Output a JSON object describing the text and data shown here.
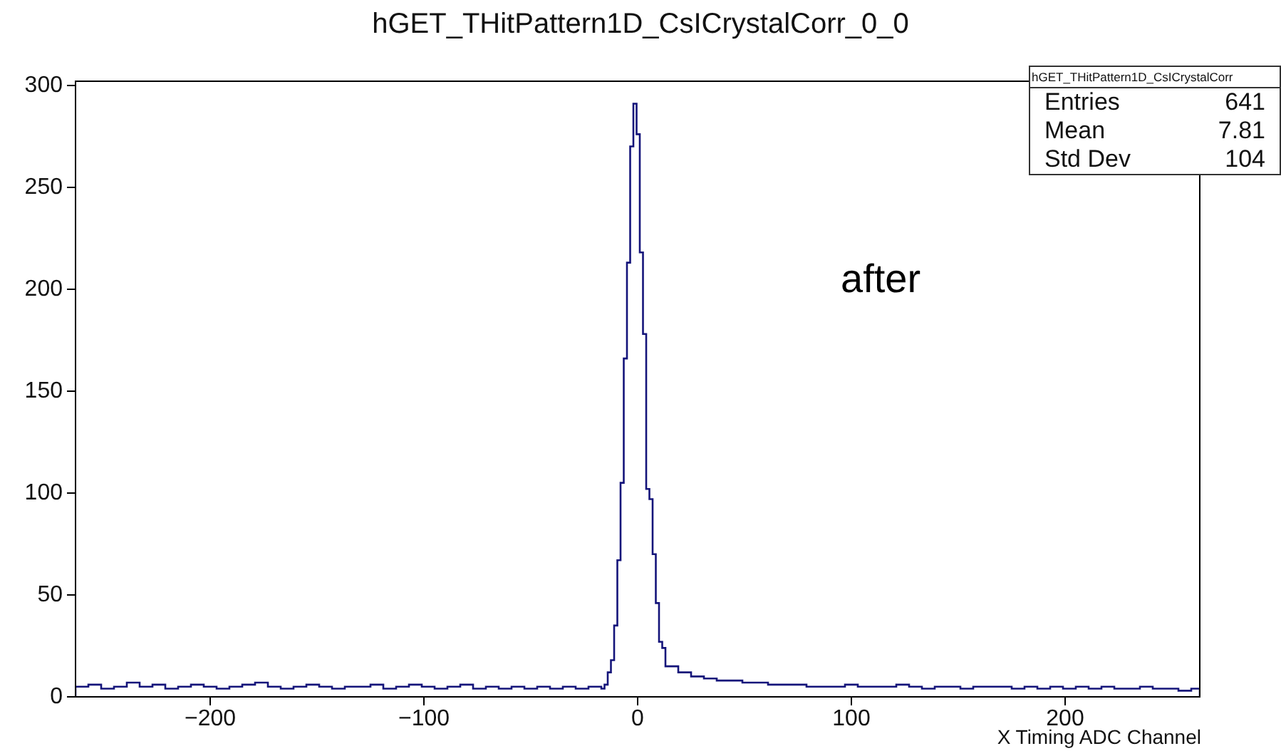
{
  "chart_data": {
    "type": "histogram",
    "title": "hGET_THitPattern1D_CsICrystalCorr_0_0",
    "xlabel": "X Timing ADC Channel",
    "color": "#14147a",
    "grid": false,
    "legend": false,
    "bins": [
      -263,
      -257,
      -251,
      -245,
      -239,
      -233,
      -227,
      -221,
      -215,
      -209,
      -203,
      -197,
      -191,
      -185,
      -179,
      -173,
      -167,
      -161,
      -155,
      -149,
      -143,
      -137,
      -131,
      -125,
      -119,
      -113,
      -107,
      -101,
      -95,
      -89,
      -83,
      -77,
      -71,
      -65,
      -59,
      -53,
      -47,
      -41,
      -35,
      -29,
      -23,
      -17,
      -15.5,
      -14,
      -12.5,
      -11,
      -9.5,
      -8,
      -6.5,
      -5,
      -3.5,
      -2,
      -0.5,
      1,
      2.5,
      4,
      5.5,
      7,
      8.5,
      10,
      11.5,
      13,
      19,
      25,
      31,
      37,
      43,
      49,
      55,
      61,
      67,
      73,
      79,
      85,
      91,
      97,
      103,
      109,
      115,
      121,
      127,
      133,
      139,
      145,
      151,
      157,
      163,
      169,
      175,
      181,
      187,
      193,
      199,
      205,
      211,
      217,
      223,
      229,
      235,
      241,
      247,
      253,
      259,
      263
    ],
    "values": [
      5,
      6,
      4,
      5,
      7,
      5,
      6,
      4,
      5,
      6,
      5,
      4,
      5,
      6,
      7,
      5,
      4,
      5,
      6,
      5,
      4,
      5,
      5,
      6,
      4,
      5,
      6,
      5,
      4,
      5,
      6,
      4,
      5,
      4,
      5,
      4,
      5,
      4,
      5,
      4,
      5,
      4,
      6,
      12,
      18,
      35,
      67,
      105,
      166,
      213,
      270,
      291,
      276,
      218,
      178,
      102,
      97,
      70,
      46,
      27,
      24,
      15,
      12,
      10,
      9,
      8,
      8,
      7,
      7,
      6,
      6,
      6,
      5,
      5,
      5,
      6,
      5,
      5,
      5,
      6,
      5,
      4,
      5,
      5,
      4,
      5,
      5,
      5,
      4,
      5,
      4,
      5,
      4,
      5,
      4,
      5,
      4,
      4,
      5,
      4,
      4,
      3,
      4
    ],
    "xlim": [
      -263,
      263
    ],
    "xticks": [
      -200,
      -100,
      0,
      100,
      200
    ],
    "ylim": [
      0,
      302
    ],
    "yticks": [
      0,
      50,
      100,
      150,
      200,
      250,
      300
    ],
    "annotations": [
      "hGET_THitPattern1D_CsICrystalCorr",
      "Entries",
      "641",
      "Mean",
      "7.81",
      "Std Dev",
      "104",
      "after"
    ]
  }
}
